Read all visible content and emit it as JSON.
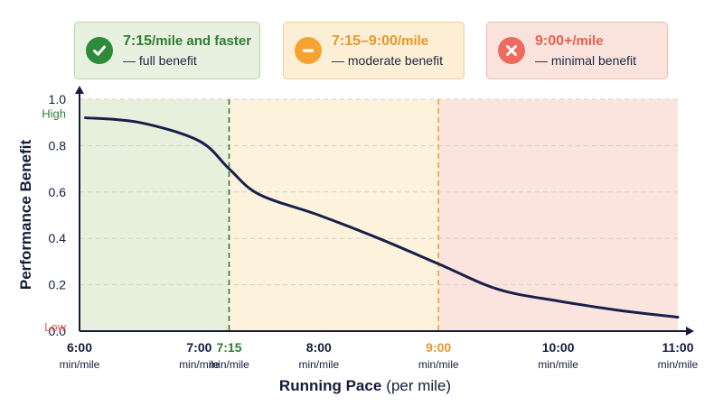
{
  "legend": [
    {
      "range": "7:15",
      "range_suffix": "/mile and faster",
      "desc": "— full benefit",
      "icon": "check-icon",
      "color": "#2e8b3a"
    },
    {
      "range": "7:15–9:00",
      "range_suffix": "/mile",
      "desc": "— moderate benefit",
      "icon": "minus-icon",
      "color": "#f5a431"
    },
    {
      "range": "9:00+",
      "range_suffix": "/mile",
      "desc": "— minimal benefit",
      "icon": "x-icon",
      "color": "#ef6b60"
    }
  ],
  "chart_data": {
    "type": "line",
    "xlabel_bold": "Running Pace",
    "xlabel_rest": "(per mile)",
    "ylabel": "Performance Benefit",
    "xlim": [
      6.0,
      11.0
    ],
    "ylim": [
      0.0,
      1.0
    ],
    "grid": true,
    "y_ticks": [
      {
        "value": 0.0,
        "label": "0.0"
      },
      {
        "value": 0.2,
        "label": "0.2"
      },
      {
        "value": 0.4,
        "label": "0.4"
      },
      {
        "value": 0.6,
        "label": "0.6"
      },
      {
        "value": 0.8,
        "label": "0.8"
      },
      {
        "value": 1.0,
        "label": "1.0"
      }
    ],
    "y_qualitative": [
      {
        "value": 0.94,
        "label": "High",
        "color": "#2f7d32"
      },
      {
        "value": 0.02,
        "label": "Low",
        "color": "#e8604f"
      }
    ],
    "x_ticks": [
      {
        "value": 6.0,
        "label": "6:00",
        "unit": "min/mile",
        "color": "#151c3b"
      },
      {
        "value": 7.0,
        "label": "7:00",
        "unit": "min/mile",
        "color": "#151c3b"
      },
      {
        "value": 7.25,
        "label": "7:15",
        "unit": "min/mile",
        "color": "#2f7d32"
      },
      {
        "value": 8.0,
        "label": "8:00",
        "unit": "min/mile",
        "color": "#151c3b"
      },
      {
        "value": 9.0,
        "label": "9:00",
        "unit": "min/mile",
        "color": "#e8962a"
      },
      {
        "value": 10.0,
        "label": "10:00",
        "unit": "min/mile",
        "color": "#151c3b"
      },
      {
        "value": 11.0,
        "label": "11:00",
        "unit": "min/mile",
        "color": "#151c3b"
      }
    ],
    "zones": [
      {
        "from": 6.0,
        "to": 7.25,
        "color": "#e6f0dc"
      },
      {
        "from": 7.25,
        "to": 9.0,
        "color": "#fdf2dc"
      },
      {
        "from": 9.0,
        "to": 11.0,
        "color": "#fbe4de"
      }
    ],
    "thresholds": [
      {
        "value": 7.25,
        "color": "#2f7d32"
      },
      {
        "value": 9.0,
        "color": "#f0a030"
      }
    ],
    "series": [
      {
        "color": "#17204a",
        "x": [
          6.05,
          6.5,
          7.0,
          7.25,
          7.5,
          8.0,
          8.5,
          9.0,
          9.5,
          10.0,
          10.5,
          11.0
        ],
        "y": [
          0.92,
          0.9,
          0.82,
          0.7,
          0.59,
          0.5,
          0.4,
          0.29,
          0.18,
          0.13,
          0.09,
          0.06
        ]
      }
    ]
  }
}
